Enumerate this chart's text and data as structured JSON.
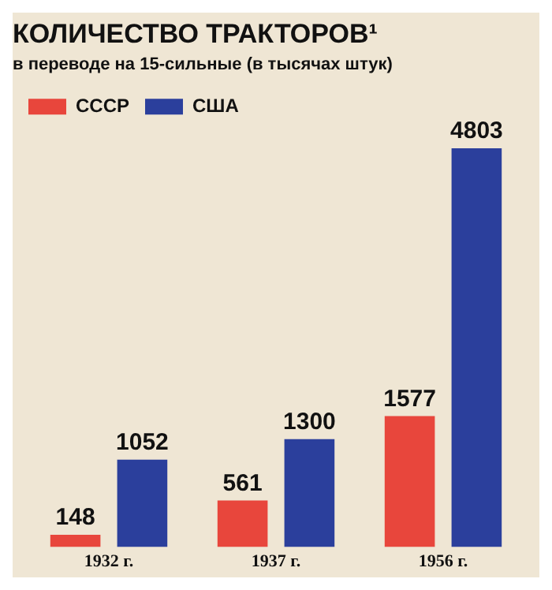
{
  "chart_data": {
    "type": "bar",
    "title": "КОЛИЧЕСТВО ТРАКТОРОВ¹",
    "subtitle": "в переводе на 15-сильные (в тысячах штук)",
    "categories": [
      "1932 г.",
      "1937 г.",
      "1956 г."
    ],
    "series": [
      {
        "name": "СССР",
        "color": "#e8463c",
        "values": [
          148,
          561,
          1577
        ]
      },
      {
        "name": "США",
        "color": "#2b3f9c",
        "values": [
          1052,
          1300,
          4803
        ]
      }
    ],
    "relative": false,
    "data_labels": true,
    "legend": "top left",
    "grid": false
  }
}
